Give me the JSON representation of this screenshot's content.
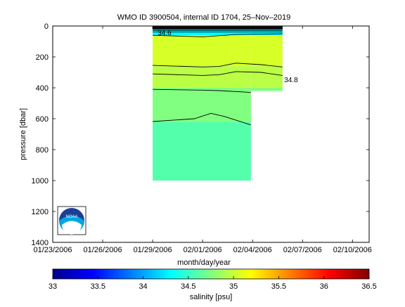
{
  "chart_data": {
    "type": "heatmap",
    "title": "WMO ID 3900504, internal ID 1704, 25–Nov–2019",
    "xlabel": "month/day/year",
    "ylabel": "pressure [dbar]",
    "x_ticks": [
      "01/23/2006",
      "01/26/2006",
      "01/29/2006",
      "02/01/2006",
      "02/04/2006",
      "02/07/2006",
      "02/10/2006"
    ],
    "y_ticks": [
      0,
      200,
      400,
      600,
      800,
      1000,
      1200,
      1400
    ],
    "xlim_days": [
      0,
      19
    ],
    "ylim": [
      1400,
      0
    ],
    "colorbar": {
      "label": "salinity [psu]",
      "ticks": [
        33,
        33.5,
        34,
        34.5,
        35,
        35.5,
        36,
        36.5
      ],
      "range": [
        33,
        36.5
      ]
    },
    "profiles": [
      {
        "day_start": 6.0,
        "day_end": 11.9,
        "max_pressure": 1000
      },
      {
        "day_start": 11.9,
        "day_end": 13.8,
        "max_pressure": 420
      }
    ],
    "layers": [
      {
        "from": 0,
        "to": 60,
        "value": 34.3
      },
      {
        "from": 60,
        "to": 260,
        "value": 35.05
      },
      {
        "from": 260,
        "to": 400,
        "value": 34.95
      },
      {
        "from": 400,
        "to": 620,
        "value": 34.75
      },
      {
        "from": 620,
        "to": 1000,
        "value": 34.6
      }
    ],
    "contours": [
      {
        "label": "34.8",
        "points": [
          [
            6,
            255
          ],
          [
            9,
            265
          ],
          [
            10,
            262
          ],
          [
            11,
            240
          ],
          [
            12.5,
            250
          ],
          [
            13.8,
            265
          ]
        ]
      },
      {
        "label": "",
        "points": [
          [
            6,
            310
          ],
          [
            9,
            320
          ],
          [
            10,
            315
          ],
          [
            11,
            295
          ],
          [
            12.5,
            300
          ],
          [
            13.8,
            320
          ]
        ]
      },
      {
        "label": "",
        "points": [
          [
            6,
            410
          ],
          [
            9,
            415
          ],
          [
            10,
            418
          ],
          [
            11.9,
            430
          ]
        ]
      },
      {
        "label": "",
        "points": [
          [
            6,
            618
          ],
          [
            8.5,
            600
          ],
          [
            9.5,
            565
          ],
          [
            10.3,
            585
          ],
          [
            11.9,
            640
          ]
        ]
      },
      {
        "label": "",
        "points": [
          [
            6,
            60
          ],
          [
            9,
            70
          ],
          [
            11,
            55
          ],
          [
            13.8,
            50
          ]
        ]
      }
    ],
    "contour_labels": [
      {
        "text": "34.8",
        "day": 13.9,
        "pressure": 345
      },
      {
        "text": "34.6",
        "day": 6.3,
        "pressure": 40
      }
    ],
    "surface_lines_pressures": [
      8,
      14,
      22,
      30,
      38
    ],
    "grid": false
  },
  "colors": {
    "colormap": [
      "#00008f",
      "#0000ff",
      "#0080ff",
      "#00ffff",
      "#80ff80",
      "#ffff00",
      "#ff8000",
      "#ff0000",
      "#800000"
    ]
  },
  "logo": {
    "text": "NOAA"
  }
}
